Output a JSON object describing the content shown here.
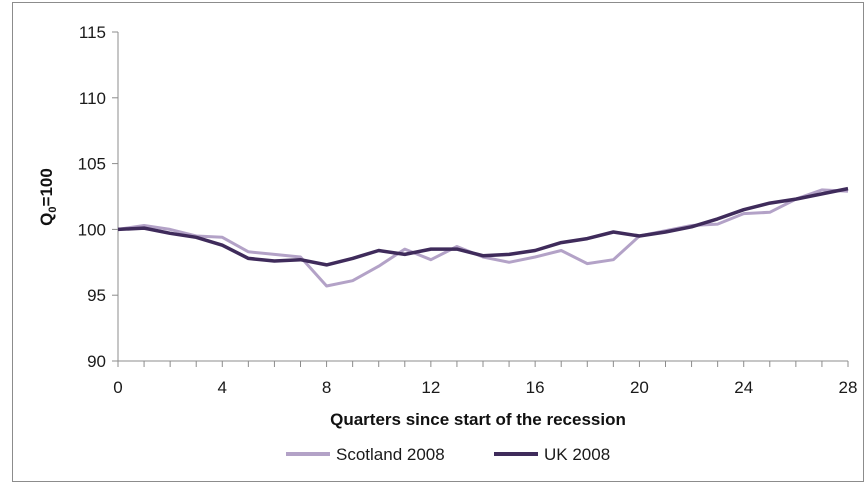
{
  "chart_data": {
    "type": "line",
    "title": "",
    "xlabel": "Quarters since start of the recession",
    "ylabel_main": "Q",
    "ylabel_sub": "0",
    "ylabel_rest": "=100",
    "xlim": [
      0,
      28
    ],
    "ylim": [
      90,
      115
    ],
    "x_ticks": [
      "0",
      "4",
      "8",
      "12",
      "16",
      "20",
      "24",
      "28"
    ],
    "y_ticks": [
      "90",
      "95",
      "100",
      "105",
      "110",
      "115"
    ],
    "grid": false,
    "legend_position": "bottom",
    "x": [
      0,
      1,
      2,
      3,
      4,
      5,
      6,
      7,
      8,
      9,
      10,
      11,
      12,
      13,
      14,
      15,
      16,
      17,
      18,
      19,
      20,
      21,
      22,
      23,
      24,
      25,
      26,
      27,
      28
    ],
    "series": [
      {
        "name": "Scotland 2008",
        "color": "#b3a2c7",
        "values": [
          100.0,
          100.3,
          100.0,
          99.5,
          99.4,
          98.3,
          98.1,
          97.9,
          95.7,
          96.1,
          97.2,
          98.5,
          97.7,
          98.7,
          97.9,
          97.5,
          97.9,
          98.4,
          97.4,
          97.7,
          99.5,
          99.9,
          100.3,
          100.4,
          101.2,
          101.3,
          102.3,
          103.0,
          102.9
        ]
      },
      {
        "name": "UK 2008",
        "color": "#3f2b5b",
        "values": [
          100.0,
          100.1,
          99.7,
          99.4,
          98.8,
          97.8,
          97.6,
          97.7,
          97.3,
          97.8,
          98.4,
          98.1,
          98.5,
          98.5,
          98.0,
          98.1,
          98.4,
          99.0,
          99.3,
          99.8,
          99.5,
          99.8,
          100.2,
          100.8,
          101.5,
          102.0,
          102.3,
          102.7,
          103.1
        ]
      }
    ]
  }
}
